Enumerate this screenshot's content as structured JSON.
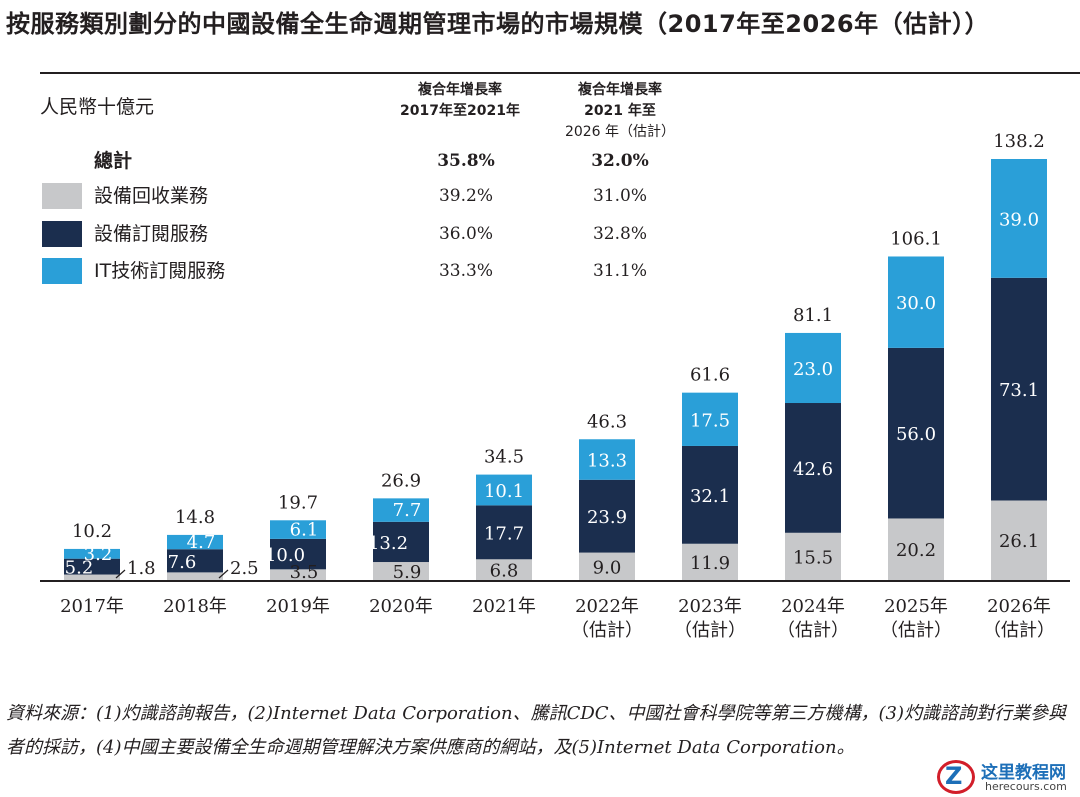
{
  "title": "按服務類別劃分的中國設備全生命週期管理市場的市場規模（2017年至2026年（估計））",
  "unit_label": "人民幣十億元",
  "cagr_headers": [
    {
      "line1": "複合年增長率",
      "line2": "2017年至2021年",
      "line3": ""
    },
    {
      "line1": "複合年增長率",
      "line2": "2021 年至",
      "line3": "2026 年（估計）"
    }
  ],
  "legend": [
    {
      "label": "總計",
      "cagr1": "35.8%",
      "cagr2": "32.0%",
      "color": ""
    },
    {
      "label": "設備回收業務",
      "cagr1": "39.2%",
      "cagr2": "31.0%",
      "color": "#c7c8ca"
    },
    {
      "label": "設備訂閱服務",
      "cagr1": "36.0%",
      "cagr2": "32.8%",
      "color": "#1b2e4e"
    },
    {
      "label": "IT技術訂閱服務",
      "cagr1": "33.3%",
      "cagr2": "31.1%",
      "color": "#2a9fd8"
    }
  ],
  "chart_data": {
    "type": "bar",
    "stacked": true,
    "categories": [
      {
        "year": "2017年",
        "note": ""
      },
      {
        "year": "2018年",
        "note": ""
      },
      {
        "year": "2019年",
        "note": ""
      },
      {
        "year": "2020年",
        "note": ""
      },
      {
        "year": "2021年",
        "note": ""
      },
      {
        "year": "2022年",
        "note": "（估計）"
      },
      {
        "year": "2023年",
        "note": "（估計）"
      },
      {
        "year": "2024年",
        "note": "（估計）"
      },
      {
        "year": "2025年",
        "note": "（估計）"
      },
      {
        "year": "2026年",
        "note": "（估計）"
      }
    ],
    "series": [
      {
        "name": "設備回收業務",
        "color": "#c7c8ca",
        "values": [
          1.8,
          2.5,
          3.5,
          5.9,
          6.8,
          9.0,
          11.9,
          15.5,
          20.2,
          26.1
        ]
      },
      {
        "name": "設備訂閱服務",
        "color": "#1b2e4e",
        "values": [
          5.2,
          7.6,
          10.0,
          13.2,
          17.7,
          23.9,
          32.1,
          42.6,
          56.0,
          73.1
        ]
      },
      {
        "name": "IT技術訂閱服務",
        "color": "#2a9fd8",
        "values": [
          3.2,
          4.7,
          6.1,
          7.7,
          10.1,
          13.3,
          17.5,
          23.0,
          30.0,
          39.0
        ]
      }
    ],
    "totals": [
      "10.2",
      "14.8",
      "19.7",
      "26.9",
      "34.5",
      "46.3",
      "61.6",
      "81.1",
      "106.1",
      "138.2"
    ],
    "series_labels": [
      [
        "1.8",
        "2.5",
        "3.5",
        "5.9",
        "6.8",
        "9.0",
        "11.9",
        "15.5",
        "20.2",
        "26.1"
      ],
      [
        "5.2",
        "7.6",
        "10.0",
        "13.2",
        "17.7",
        "23.9",
        "32.1",
        "42.6",
        "56.0",
        "73.1"
      ],
      [
        "3.2",
        "4.7",
        "6.1",
        "7.7",
        "10.1",
        "13.3",
        "17.5",
        "23.0",
        "30.0",
        "39.0"
      ]
    ],
    "ylim": [
      0,
      138.2
    ],
    "grid": false,
    "legend_position": "top-left"
  },
  "source": "資料來源：(1)灼識諮詢報告，(2)Internet Data Corporation、騰訊CDC、中國社會科學院等第三方機構，(3)灼識諮詢對行業參與者的採訪，(4)中國主要設備全生命週期管理解決方案供應商的網站，及(5)Internet Data Corporation。",
  "watermark": {
    "letter": "Z",
    "line1": "这里教程网",
    "line2": "herecours.com"
  }
}
